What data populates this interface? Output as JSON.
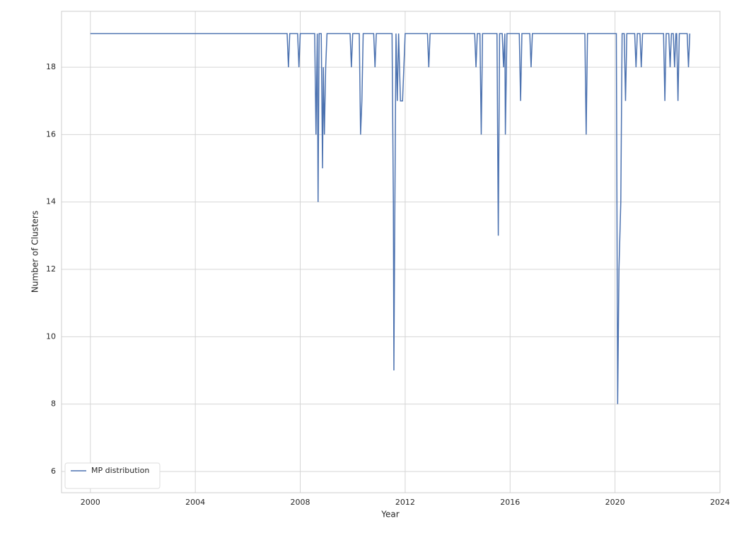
{
  "chart_data": {
    "type": "line",
    "xlabel": "Year",
    "ylabel": "Number of Clusters",
    "xlim": [
      1998.9,
      2024.0
    ],
    "ylim": [
      5.37,
      19.66
    ],
    "xticks": [
      2000,
      2004,
      2008,
      2012,
      2016,
      2020,
      2024
    ],
    "yticks": [
      6,
      8,
      10,
      12,
      14,
      16,
      18
    ],
    "grid": true,
    "legend": "lower left",
    "series": [
      {
        "name": "MP distribution",
        "color": "#4c72b0",
        "x": [
          2000.0,
          2007.5,
          2007.55,
          2007.6,
          2007.9,
          2007.95,
          2008.0,
          2008.55,
          2008.6,
          2008.65,
          2008.68,
          2008.72,
          2008.8,
          2008.85,
          2008.88,
          2008.92,
          2008.97,
          2009.02,
          2009.9,
          2009.95,
          2010.0,
          2010.25,
          2010.3,
          2010.35,
          2010.4,
          2010.8,
          2010.85,
          2010.9,
          2011.5,
          2011.55,
          2011.57,
          2011.6,
          2011.65,
          2011.7,
          2011.75,
          2011.82,
          2011.9,
          2011.95,
          2012.0,
          2012.85,
          2012.9,
          2012.95,
          2014.65,
          2014.7,
          2014.75,
          2014.85,
          2014.9,
          2014.95,
          2015.5,
          2015.55,
          2015.6,
          2015.7,
          2015.75,
          2015.8,
          2015.82,
          2015.88,
          2016.35,
          2016.4,
          2016.45,
          2016.75,
          2016.8,
          2016.85,
          2018.85,
          2018.9,
          2018.95,
          2020.05,
          2020.1,
          2020.15,
          2020.22,
          2020.27,
          2020.35,
          2020.4,
          2020.45,
          2020.75,
          2020.8,
          2020.85,
          2020.95,
          2021.0,
          2021.05,
          2021.85,
          2021.9,
          2021.95,
          2022.05,
          2022.1,
          2022.15,
          2022.22,
          2022.27,
          2022.32,
          2022.35,
          2022.4,
          2022.45,
          2022.75,
          2022.8,
          2022.85
        ],
        "values": [
          19,
          19,
          18,
          19,
          19,
          18,
          19,
          19,
          16,
          19,
          14,
          19,
          19,
          15,
          18,
          16,
          18,
          19,
          19,
          18,
          19,
          19,
          16,
          17,
          19,
          19,
          18,
          19,
          19,
          14,
          9,
          13,
          19,
          17,
          19,
          17,
          17,
          18,
          19,
          19,
          18,
          19,
          19,
          18,
          19,
          19,
          16,
          19,
          19,
          13,
          19,
          19,
          18,
          19,
          16,
          19,
          19,
          17,
          19,
          19,
          18,
          19,
          19,
          16,
          19,
          19,
          8,
          12,
          14,
          19,
          19,
          17,
          19,
          19,
          18,
          19,
          19,
          18,
          19,
          19,
          17,
          19,
          19,
          18,
          19,
          19,
          18,
          19,
          19,
          17,
          19,
          19,
          18,
          19
        ]
      }
    ]
  }
}
